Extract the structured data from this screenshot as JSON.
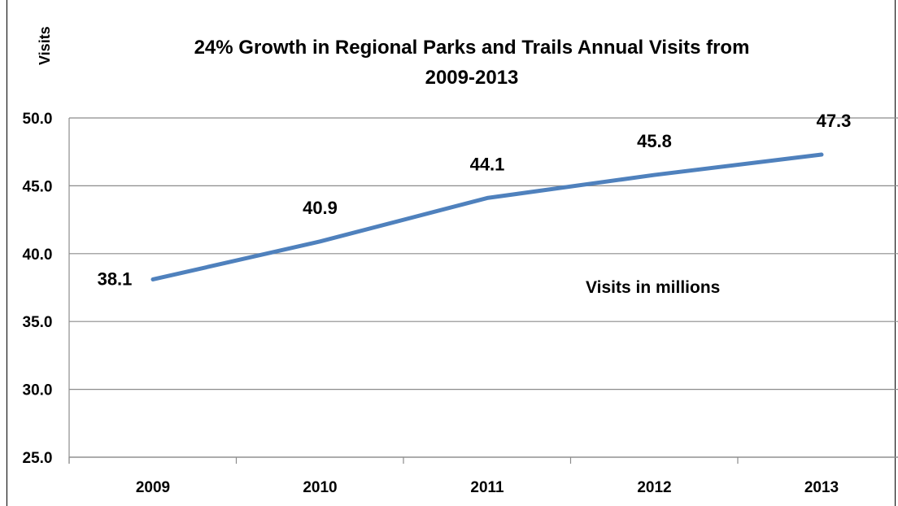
{
  "chart_data": {
    "type": "line",
    "title": "24% Growth in Regional Parks and Trails Annual Visits  from 2009-2013",
    "ylabel": "Visits",
    "xlabel": "",
    "annotation": "Visits in millions",
    "categories": [
      "2009",
      "2010",
      "2011",
      "2012",
      "2013"
    ],
    "series": [
      {
        "values": [
          38.1,
          40.9,
          44.1,
          45.8,
          47.3
        ],
        "color": "#4f81bd"
      }
    ],
    "data_labels": [
      "38.1",
      "40.9",
      "44.1",
      "45.8",
      "47.3"
    ],
    "yticks": [
      "25.0",
      "30.0",
      "35.0",
      "40.0",
      "45.0",
      "50.0"
    ],
    "ylim": [
      25,
      50
    ],
    "grid": true,
    "legend": "none"
  }
}
